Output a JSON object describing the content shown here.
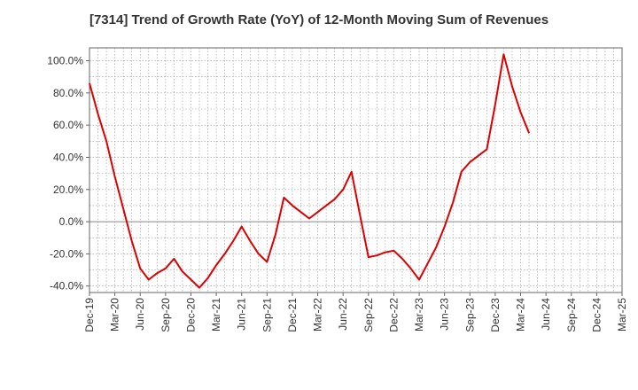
{
  "chart_data": {
    "type": "line",
    "title": "[7314]  Trend of Growth Rate (YoY) of 12-Month Moving Sum of Revenues",
    "xlabel": "",
    "ylabel": "",
    "x_tick_labels": [
      "Dec-19",
      "Mar-20",
      "Jun-20",
      "Sep-20",
      "Dec-20",
      "Mar-21",
      "Jun-21",
      "Sep-21",
      "Dec-21",
      "Mar-22",
      "Jun-22",
      "Sep-22",
      "Dec-22",
      "Mar-23",
      "Jun-23",
      "Sep-23",
      "Dec-23",
      "Mar-24",
      "Jun-24",
      "Sep-24",
      "Dec-24",
      "Mar-25"
    ],
    "y_ticks": [
      -40,
      -20,
      0,
      20,
      40,
      60,
      80,
      100
    ],
    "y_tick_labels": [
      "-40.0%",
      "-20.0%",
      "0.0%",
      "20.0%",
      "40.0%",
      "60.0%",
      "80.0%",
      "100.0%"
    ],
    "ylim": [
      -44,
      108
    ],
    "grid": true,
    "line_color": "#dd0000",
    "series": [
      {
        "values": [
          86,
          67,
          50,
          28,
          8,
          -12,
          -29,
          -36,
          -32,
          -29,
          -23,
          -31,
          -36,
          -41,
          -35,
          -27,
          -20,
          -12,
          -3,
          -12,
          -20,
          -25,
          -8,
          15,
          10,
          6,
          2,
          6,
          10,
          14,
          20,
          31,
          4,
          -22,
          -21,
          -19,
          -18,
          -23,
          -29,
          -36,
          -26,
          -16,
          -3,
          12,
          31,
          37,
          41,
          45,
          73,
          104,
          84,
          68,
          55
        ]
      }
    ]
  }
}
